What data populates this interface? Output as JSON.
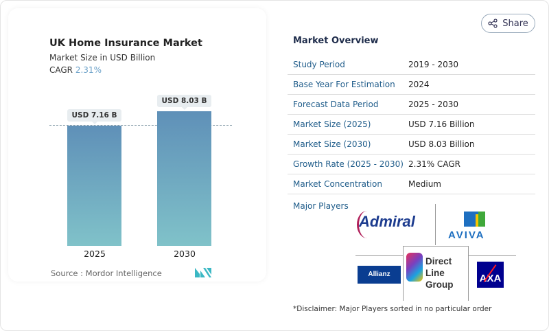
{
  "share_label": "Share",
  "chart_data": {
    "type": "bar",
    "title": "UK Home Insurance Market",
    "subtitle": "Market Size in USD Billion",
    "cagr_label": "CAGR",
    "cagr_value": "2.31%",
    "categories": [
      "2025",
      "2030"
    ],
    "values": [
      7.16,
      8.03
    ],
    "data_labels": [
      "USD 7.16 B",
      "USD 8.03 B"
    ],
    "bar_colors": [
      "#5f90b8",
      "#80c2c9"
    ],
    "source": "Source :  Mordor Intelligence"
  },
  "overview": {
    "title": "Market Overview",
    "rows": [
      {
        "k": "Study Period",
        "v": "2019 - 2030"
      },
      {
        "k": "Base Year For Estimation",
        "v": "2024"
      },
      {
        "k": "Forecast Data Period",
        "v": "2025 - 2030"
      },
      {
        "k": "Market Size (2025)",
        "v": "USD 7.16 Billion"
      },
      {
        "k": "Market Size (2030)",
        "v": "USD 8.03 Billion"
      },
      {
        "k": "Growth Rate (2025 - 2030)",
        "v": "2.31% CAGR"
      },
      {
        "k": "Market Concentration",
        "v": "Medium"
      }
    ],
    "major_players_label": "Major Players",
    "players": [
      "Admiral",
      "AVIVA",
      "Allianz",
      "Direct Line Group",
      "AXA"
    ],
    "disclaimer": "*Disclaimer: Major Players sorted in no particular order"
  }
}
